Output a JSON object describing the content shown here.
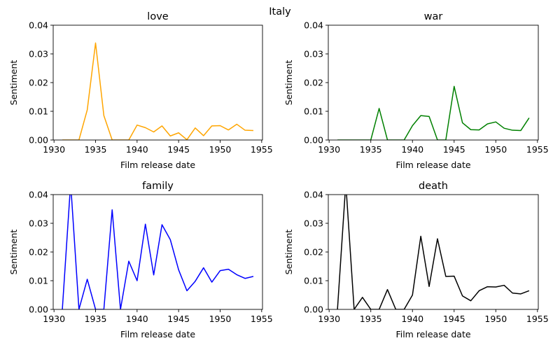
{
  "figure_title": "Italy",
  "chart_data": [
    {
      "type": "line",
      "title": "love",
      "xlabel": "Film release date",
      "ylabel": "Sentiment",
      "xlim": [
        1929.9,
        1955.1
      ],
      "ylim": [
        0,
        0.04
      ],
      "xticks": [
        "1930",
        "1935",
        "1940",
        "1945",
        "1950",
        "1955"
      ],
      "yticks": [
        "0.00",
        "0.01",
        "0.02",
        "0.03",
        "0.04"
      ],
      "color": "#ffa500",
      "x": [
        1931,
        1932,
        1933,
        1934,
        1935,
        1936,
        1937,
        1938,
        1939,
        1940,
        1941,
        1942,
        1943,
        1944,
        1945,
        1946,
        1947,
        1948,
        1949,
        1950,
        1951,
        1952,
        1953,
        1954
      ],
      "y": [
        0,
        0,
        0,
        0.0105,
        0.0338,
        0.0085,
        0,
        0,
        0,
        0.0052,
        0.0043,
        0.0028,
        0.0049,
        0.0014,
        0.0025,
        0.0001,
        0.0042,
        0.0015,
        0.0049,
        0.005,
        0.0035,
        0.0055,
        0.0034,
        0.0033
      ]
    },
    {
      "type": "line",
      "title": "war",
      "xlabel": "Film release date",
      "ylabel": "Sentiment",
      "xlim": [
        1929.9,
        1955.1
      ],
      "ylim": [
        0,
        0.04
      ],
      "xticks": [
        "1930",
        "1935",
        "1940",
        "1945",
        "1950",
        "1955"
      ],
      "yticks": [
        "0.00",
        "0.01",
        "0.02",
        "0.03",
        "0.04"
      ],
      "color": "#008000",
      "x": [
        1931,
        1932,
        1933,
        1934,
        1935,
        1936,
        1937,
        1938,
        1939,
        1940,
        1941,
        1942,
        1943,
        1944,
        1945,
        1946,
        1947,
        1948,
        1949,
        1950,
        1951,
        1952,
        1953,
        1954
      ],
      "y": [
        0,
        0,
        0,
        0,
        0,
        0.011,
        0,
        0,
        0,
        0.005,
        0.0085,
        0.0082,
        0,
        0,
        0.0187,
        0.006,
        0.0036,
        0.0035,
        0.0056,
        0.0063,
        0.0041,
        0.0034,
        0.0033,
        0.0077
      ]
    },
    {
      "type": "line",
      "title": "family",
      "xlabel": "Film release date",
      "ylabel": "Sentiment",
      "xlim": [
        1929.9,
        1955.1
      ],
      "ylim": [
        0,
        0.04
      ],
      "xticks": [
        "1930",
        "1935",
        "1940",
        "1945",
        "1950",
        "1955"
      ],
      "yticks": [
        "0.00",
        "0.01",
        "0.02",
        "0.03",
        "0.04"
      ],
      "color": "#0000ff",
      "x": [
        1931,
        1932,
        1933,
        1934,
        1935,
        1936,
        1937,
        1938,
        1939,
        1940,
        1941,
        1942,
        1943,
        1944,
        1945,
        1946,
        1947,
        1948,
        1949,
        1950,
        1951,
        1952,
        1953,
        1954
      ],
      "y": [
        0,
        0.044,
        0,
        0.0105,
        0,
        0,
        0.0347,
        0,
        0.0168,
        0.01,
        0.0297,
        0.012,
        0.0295,
        0.0243,
        0.0138,
        0.0065,
        0.0098,
        0.0145,
        0.0095,
        0.0135,
        0.014,
        0.0121,
        0.0108,
        0.0115
      ]
    },
    {
      "type": "line",
      "title": "death",
      "xlabel": "Film release date",
      "ylabel": "Sentiment",
      "xlim": [
        1929.9,
        1955.1
      ],
      "ylim": [
        0,
        0.04
      ],
      "xticks": [
        "1930",
        "1935",
        "1940",
        "1945",
        "1950",
        "1955"
      ],
      "yticks": [
        "0.00",
        "0.01",
        "0.02",
        "0.03",
        "0.04"
      ],
      "color": "#000000",
      "x": [
        1931,
        1932,
        1933,
        1934,
        1935,
        1936,
        1937,
        1938,
        1939,
        1940,
        1941,
        1942,
        1943,
        1944,
        1945,
        1946,
        1947,
        1948,
        1949,
        1950,
        1951,
        1952,
        1953,
        1954
      ],
      "y": [
        0,
        0.044,
        0,
        0.0042,
        0,
        0,
        0.0069,
        0,
        0,
        0.005,
        0.0255,
        0.008,
        0.0246,
        0.0115,
        0.0116,
        0.0047,
        0.003,
        0.0065,
        0.0079,
        0.0078,
        0.0084,
        0.0057,
        0.0054,
        0.0065
      ]
    }
  ]
}
